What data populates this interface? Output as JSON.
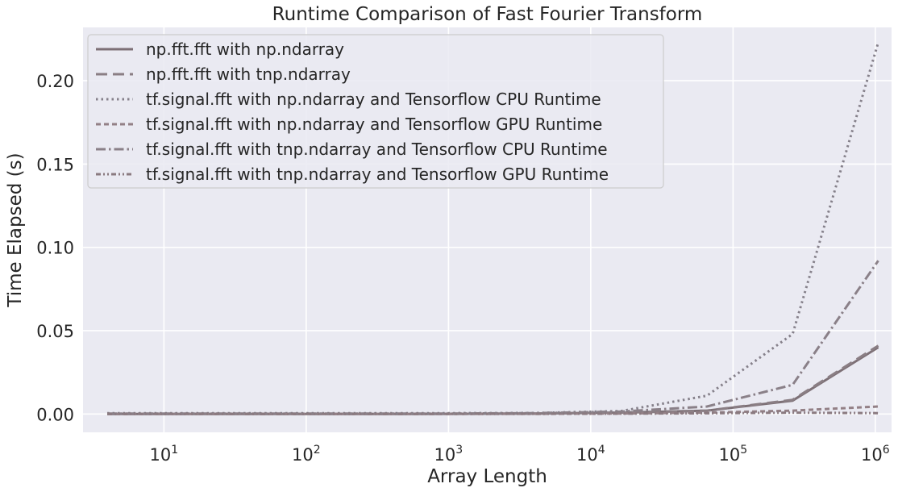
{
  "chart_data": {
    "type": "line",
    "title": "Runtime Comparison of Fast Fourier Transform",
    "xlabel": "Array Length",
    "ylabel": "Time Elapsed (s)",
    "xscale": "log",
    "xlim": [
      2.7,
      1300000
    ],
    "ylim": [
      -0.011,
      0.232
    ],
    "grid": true,
    "legend_position": "upper-left",
    "x_ticks": [
      10,
      100,
      1000,
      10000,
      100000,
      1000000
    ],
    "x_tick_labels": [
      {
        "base": "10",
        "exp": "1"
      },
      {
        "base": "10",
        "exp": "2"
      },
      {
        "base": "10",
        "exp": "3"
      },
      {
        "base": "10",
        "exp": "4"
      },
      {
        "base": "10",
        "exp": "5"
      },
      {
        "base": "10",
        "exp": "6"
      }
    ],
    "y_ticks": [
      0.0,
      0.05,
      0.1,
      0.15,
      0.2
    ],
    "y_tick_labels": [
      "0.00",
      "0.05",
      "0.10",
      "0.15",
      "0.20"
    ],
    "x": [
      4,
      16,
      64,
      256,
      1024,
      4096,
      16384,
      65536,
      262144,
      1048576
    ],
    "series": [
      {
        "name": "np.fft.fft with np.ndarray",
        "color": "#7d7076",
        "dash": "",
        "values": [
          0.0,
          0.0,
          0.0,
          0.0,
          0.0001,
          0.0003,
          0.0008,
          0.002,
          0.008,
          0.04
        ]
      },
      {
        "name": "np.fft.fft with tnp.ndarray",
        "color": "#8a7e84",
        "dash": "14 7",
        "values": [
          0.0,
          0.0,
          0.0,
          0.0,
          0.0001,
          0.0003,
          0.0008,
          0.002,
          0.0085,
          0.041
        ]
      },
      {
        "name": "tf.signal.fft with np.ndarray and Tensorflow CPU Runtime",
        "color": "#85808a",
        "dash": "2.5 4",
        "values": [
          0.0005,
          0.0005,
          0.0005,
          0.0005,
          0.0005,
          0.0006,
          0.0018,
          0.011,
          0.048,
          0.223
        ]
      },
      {
        "name": "tf.signal.fft with np.ndarray and Tensorflow GPU Runtime",
        "color": "#938086",
        "dash": "6 4",
        "values": [
          0.0,
          0.0,
          0.0,
          0.0,
          0.0,
          0.0001,
          0.0003,
          0.0008,
          0.002,
          0.0045
        ]
      },
      {
        "name": "tf.signal.fft with tnp.ndarray and Tensorflow CPU Runtime",
        "color": "#8a8088",
        "dash": "12 4 2.5 4",
        "values": [
          0.0003,
          0.0003,
          0.0003,
          0.0003,
          0.0003,
          0.0005,
          0.0015,
          0.0045,
          0.0175,
          0.092
        ]
      },
      {
        "name": "tf.signal.fft with tnp.ndarray and Tensorflow GPU Runtime",
        "color": "#8a7a80",
        "dash": "6 3 2 3 2 3",
        "values": [
          0.0001,
          0.0001,
          0.0001,
          0.0001,
          0.0001,
          0.0001,
          0.0002,
          0.0004,
          0.0008,
          0.0005
        ]
      }
    ]
  }
}
